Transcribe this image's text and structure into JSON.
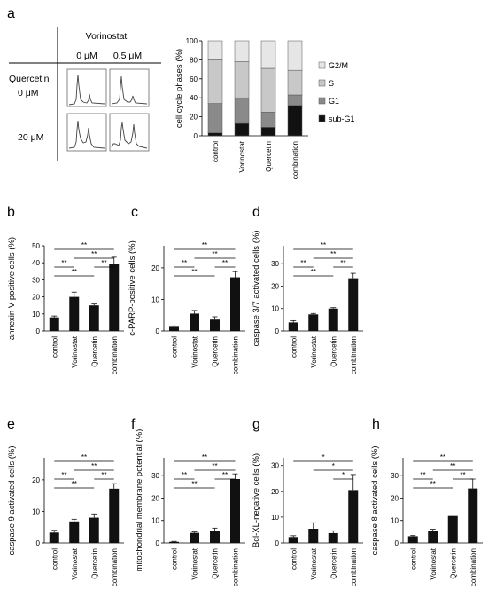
{
  "figure": {
    "panel_letters": [
      "a",
      "b",
      "c",
      "d",
      "e",
      "f",
      "g",
      "h"
    ]
  },
  "flow_grid": {
    "col_title": "Vorinostat",
    "col_labels": [
      "0 μM",
      "0.5 μM"
    ],
    "row_title": "Quercetin",
    "row_labels": [
      "0 μM",
      "20 μM"
    ]
  },
  "chart_data": [
    {
      "panel": "a",
      "type": "bar",
      "stacked": true,
      "categories": [
        "control",
        "Vorinostat",
        "Quercetin",
        "combination"
      ],
      "series": [
        {
          "name": "sub-G1",
          "color": "#111111",
          "values": [
            3,
            13,
            9,
            32
          ]
        },
        {
          "name": "G1",
          "color": "#8a8a8a",
          "values": [
            31,
            27,
            16,
            11
          ]
        },
        {
          "name": "S",
          "color": "#c8c8c8",
          "values": [
            46,
            38,
            46,
            26
          ]
        },
        {
          "name": "G2/M",
          "color": "#e6e6e6",
          "values": [
            20,
            22,
            29,
            31
          ]
        }
      ],
      "ylabel": "cell cycle phases (%)",
      "ylim": [
        0,
        100
      ],
      "yticks": [
        0,
        20,
        40,
        60,
        80,
        100
      ],
      "legend": [
        "G2/M",
        "S",
        "G1",
        "sub-G1"
      ],
      "legend_position": "right"
    },
    {
      "panel": "b",
      "type": "bar",
      "categories": [
        "control",
        "Vorinostat",
        "Quercetin",
        "combination"
      ],
      "values": [
        8,
        20,
        15,
        39.5
      ],
      "errors": [
        0.8,
        2.8,
        0.8,
        3.8
      ],
      "ylabel": "annexin V-positive cells (%)",
      "ylim": [
        0,
        50
      ],
      "yticks": [
        0,
        10,
        20,
        30,
        40,
        50
      ],
      "significance": [
        {
          "from": 0,
          "to": 3,
          "label": "**"
        },
        {
          "from": 1,
          "to": 3,
          "label": "**"
        },
        {
          "from": 0,
          "to": 1,
          "label": "**"
        },
        {
          "from": 2,
          "to": 3,
          "label": "**"
        },
        {
          "from": 0,
          "to": 2,
          "label": "**"
        }
      ]
    },
    {
      "panel": "c",
      "type": "bar",
      "categories": [
        "control",
        "Vorinostat",
        "Quercetin",
        "combination"
      ],
      "values": [
        1.3,
        5.5,
        3.6,
        17
      ],
      "errors": [
        0.3,
        1.0,
        0.9,
        1.8
      ],
      "ylabel": "c-PARP-positive cells (%)",
      "ylim": [
        0,
        27
      ],
      "yticks": [
        0,
        10,
        20
      ],
      "significance": [
        {
          "from": 0,
          "to": 3,
          "label": "**"
        },
        {
          "from": 1,
          "to": 3,
          "label": "**"
        },
        {
          "from": 0,
          "to": 1,
          "label": "**"
        },
        {
          "from": 2,
          "to": 3,
          "label": "**"
        },
        {
          "from": 0,
          "to": 2,
          "label": "**"
        }
      ]
    },
    {
      "panel": "d",
      "type": "bar",
      "categories": [
        "control",
        "Vorinostat",
        "Quercetin",
        "combination"
      ],
      "values": [
        3.8,
        7.4,
        10,
        23.5
      ],
      "errors": [
        0.8,
        0.4,
        0.4,
        2.2
      ],
      "ylabel": "caspase 3/7 activated cells (%)",
      "ylim": [
        0,
        38
      ],
      "yticks": [
        0,
        10,
        20,
        30
      ],
      "significance": [
        {
          "from": 0,
          "to": 3,
          "label": "**"
        },
        {
          "from": 1,
          "to": 3,
          "label": "**"
        },
        {
          "from": 0,
          "to": 1,
          "label": "**"
        },
        {
          "from": 2,
          "to": 3,
          "label": "**"
        },
        {
          "from": 0,
          "to": 2,
          "label": "**"
        }
      ]
    },
    {
      "panel": "e",
      "type": "bar",
      "categories": [
        "control",
        "Vorinostat",
        "Quercetin",
        "combination"
      ],
      "values": [
        3.3,
        6.8,
        8,
        17.2
      ],
      "errors": [
        0.7,
        0.7,
        1.2,
        1.6
      ],
      "ylabel": "caspase 9 activated cells (%)",
      "ylim": [
        0,
        27
      ],
      "yticks": [
        0,
        10,
        20
      ],
      "significance": [
        {
          "from": 0,
          "to": 3,
          "label": "**"
        },
        {
          "from": 1,
          "to": 3,
          "label": "**"
        },
        {
          "from": 0,
          "to": 1,
          "label": "**"
        },
        {
          "from": 2,
          "to": 3,
          "label": "**"
        },
        {
          "from": 0,
          "to": 2,
          "label": "**"
        }
      ]
    },
    {
      "panel": "f",
      "type": "bar",
      "categories": [
        "control",
        "Vorinostat",
        "Quercetin",
        "combination"
      ],
      "values": [
        0.5,
        4.5,
        5.3,
        28.5
      ],
      "errors": [
        0.2,
        0.4,
        1.3,
        2.3
      ],
      "ylabel": "mitochondrial membrane potential (%)",
      "ylim": [
        0,
        38
      ],
      "yticks": [
        0,
        10,
        20,
        30
      ],
      "significance": [
        {
          "from": 0,
          "to": 3,
          "label": "**"
        },
        {
          "from": 1,
          "to": 3,
          "label": "**"
        },
        {
          "from": 0,
          "to": 1,
          "label": "**"
        },
        {
          "from": 2,
          "to": 3,
          "label": "**"
        },
        {
          "from": 0,
          "to": 2,
          "label": "**"
        }
      ]
    },
    {
      "panel": "g",
      "type": "bar",
      "categories": [
        "control",
        "Vorinostat",
        "Quercetin",
        "combination"
      ],
      "values": [
        2.3,
        5.5,
        3.8,
        20.5
      ],
      "errors": [
        0.5,
        2.3,
        0.9,
        6
      ],
      "ylabel": "Bcl-XL-negative cells (%)",
      "ylim": [
        0,
        33
      ],
      "yticks": [
        0,
        10,
        20,
        30
      ],
      "significance": [
        {
          "from": 0,
          "to": 3,
          "label": "*"
        },
        {
          "from": 1,
          "to": 3,
          "label": "*"
        },
        {
          "from": 2,
          "to": 3,
          "label": "*"
        }
      ]
    },
    {
      "panel": "h",
      "type": "bar",
      "categories": [
        "control",
        "Vorinostat",
        "Quercetin",
        "combination"
      ],
      "values": [
        3,
        5.5,
        12,
        24.3
      ],
      "errors": [
        0.3,
        0.6,
        0.5,
        4.2
      ],
      "ylabel": "caspase 8 activated cells (%)",
      "ylim": [
        0,
        38
      ],
      "yticks": [
        0,
        10,
        20,
        30
      ],
      "significance": [
        {
          "from": 0,
          "to": 3,
          "label": "**"
        },
        {
          "from": 1,
          "to": 3,
          "label": "**"
        },
        {
          "from": 0,
          "to": 1,
          "label": "**"
        },
        {
          "from": 2,
          "to": 3,
          "label": "**"
        },
        {
          "from": 0,
          "to": 2,
          "label": "**"
        }
      ]
    }
  ]
}
